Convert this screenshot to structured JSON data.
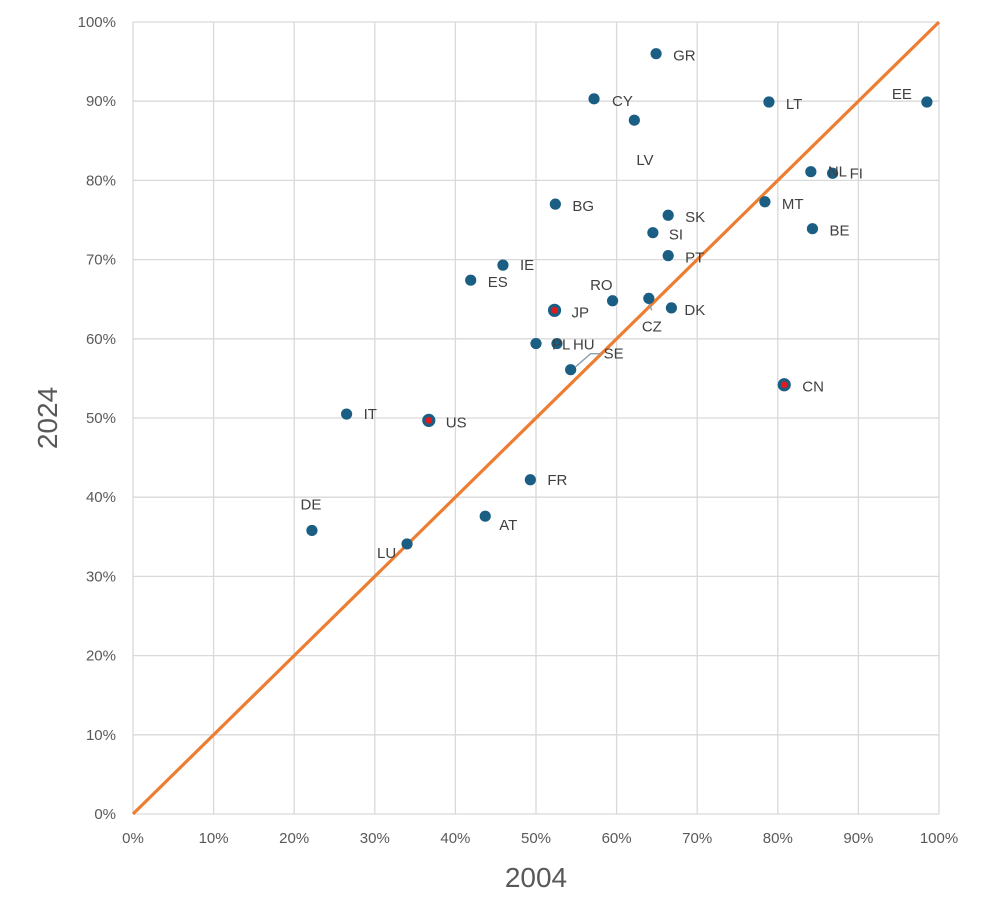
{
  "chart_data": {
    "type": "scatter",
    "title": "",
    "xlabel": "2004",
    "ylabel": "2024",
    "xlim": [
      0,
      1
    ],
    "ylim": [
      0,
      1
    ],
    "x_ticks": [
      "0%",
      "10%",
      "20%",
      "30%",
      "40%",
      "50%",
      "60%",
      "70%",
      "80%",
      "90%",
      "100%"
    ],
    "y_ticks": [
      "0%",
      "10%",
      "20%",
      "30%",
      "40%",
      "50%",
      "60%",
      "70%",
      "80%",
      "90%",
      "100%"
    ],
    "reference_line": {
      "from": [
        0,
        0
      ],
      "to": [
        1,
        1
      ],
      "color": "#ED7D31"
    },
    "marker_color": "#1B5E83",
    "highlight_color": "#E01B1B",
    "points": [
      {
        "label": "GR",
        "x": 0.649,
        "y": 0.96
      },
      {
        "label": "CY",
        "x": 0.572,
        "y": 0.903
      },
      {
        "label": "LT",
        "x": 0.789,
        "y": 0.899
      },
      {
        "label": "EE",
        "x": 0.985,
        "y": 0.899
      },
      {
        "label": "LV",
        "x": 0.622,
        "y": 0.876
      },
      {
        "label": "NL",
        "x": 0.841,
        "y": 0.811
      },
      {
        "label": "FI",
        "x": 0.868,
        "y": 0.809
      },
      {
        "label": "BG",
        "x": 0.524,
        "y": 0.77
      },
      {
        "label": "MT",
        "x": 0.784,
        "y": 0.773
      },
      {
        "label": "SK",
        "x": 0.664,
        "y": 0.756
      },
      {
        "label": "SI",
        "x": 0.645,
        "y": 0.734
      },
      {
        "label": "BE",
        "x": 0.843,
        "y": 0.739
      },
      {
        "label": "PT",
        "x": 0.664,
        "y": 0.705
      },
      {
        "label": "IE",
        "x": 0.459,
        "y": 0.693
      },
      {
        "label": "ES",
        "x": 0.419,
        "y": 0.674
      },
      {
        "label": "RO",
        "x": 0.595,
        "y": 0.648
      },
      {
        "label": "CZ",
        "x": 0.64,
        "y": 0.651
      },
      {
        "label": "DK",
        "x": 0.668,
        "y": 0.639
      },
      {
        "label": "JP",
        "x": 0.523,
        "y": 0.636,
        "highlight": true
      },
      {
        "label": "PL",
        "x": 0.5,
        "y": 0.594
      },
      {
        "label": "HU",
        "x": 0.526,
        "y": 0.594
      },
      {
        "label": "SE",
        "x": 0.543,
        "y": 0.561
      },
      {
        "label": "CN",
        "x": 0.808,
        "y": 0.542,
        "highlight": true
      },
      {
        "label": "IT",
        "x": 0.265,
        "y": 0.505
      },
      {
        "label": "US",
        "x": 0.367,
        "y": 0.497,
        "highlight": true
      },
      {
        "label": "FR",
        "x": 0.493,
        "y": 0.422
      },
      {
        "label": "AT",
        "x": 0.437,
        "y": 0.376
      },
      {
        "label": "DE",
        "x": 0.222,
        "y": 0.358
      },
      {
        "label": "LU",
        "x": 0.34,
        "y": 0.341
      }
    ]
  }
}
